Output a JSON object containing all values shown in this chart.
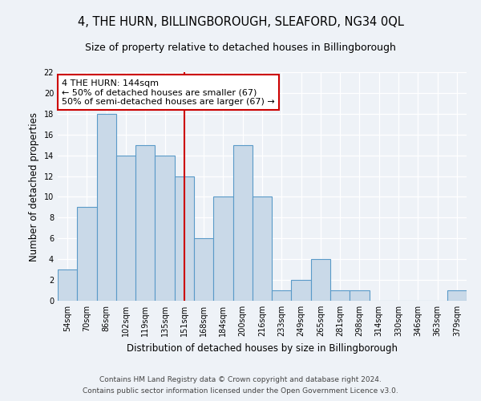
{
  "title": "4, THE HURN, BILLINGBOROUGH, SLEAFORD, NG34 0QL",
  "subtitle": "Size of property relative to detached houses in Billingborough",
  "xlabel": "Distribution of detached houses by size in Billingborough",
  "ylabel": "Number of detached properties",
  "categories": [
    "54sqm",
    "70sqm",
    "86sqm",
    "102sqm",
    "119sqm",
    "135sqm",
    "151sqm",
    "168sqm",
    "184sqm",
    "200sqm",
    "216sqm",
    "233sqm",
    "249sqm",
    "265sqm",
    "281sqm",
    "298sqm",
    "314sqm",
    "330sqm",
    "346sqm",
    "363sqm",
    "379sqm"
  ],
  "values": [
    3,
    9,
    18,
    14,
    15,
    14,
    12,
    6,
    10,
    15,
    10,
    1,
    2,
    4,
    1,
    1,
    0,
    0,
    0,
    0,
    1
  ],
  "bar_color": "#c9d9e8",
  "bar_edge_color": "#5a9ac8",
  "red_line_index": 6,
  "annotation_text": "4 THE HURN: 144sqm\n← 50% of detached houses are smaller (67)\n50% of semi-detached houses are larger (67) →",
  "annotation_box_color": "#ffffff",
  "annotation_box_edge": "#cc0000",
  "ylim": [
    0,
    22
  ],
  "yticks": [
    0,
    2,
    4,
    6,
    8,
    10,
    12,
    14,
    16,
    18,
    20,
    22
  ],
  "footnote1": "Contains HM Land Registry data © Crown copyright and database right 2024.",
  "footnote2": "Contains public sector information licensed under the Open Government Licence v3.0.",
  "background_color": "#eef2f7",
  "plot_background": "#eef2f7",
  "grid_color": "#ffffff",
  "title_fontsize": 10.5,
  "subtitle_fontsize": 9,
  "axis_label_fontsize": 8.5,
  "tick_fontsize": 7,
  "annotation_fontsize": 8,
  "footnote_fontsize": 6.5
}
